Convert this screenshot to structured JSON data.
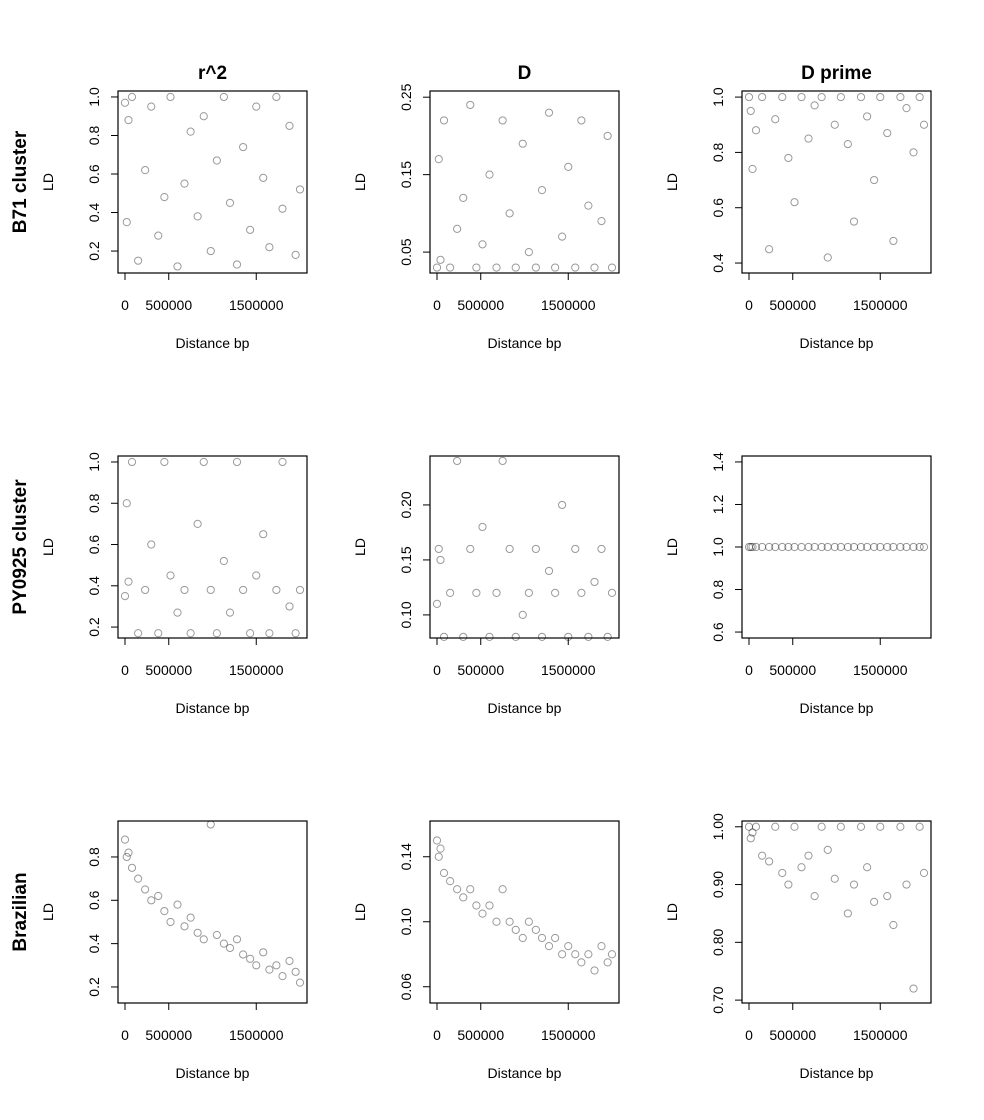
{
  "row_labels": [
    "B71 cluster",
    "PY0925 cluster",
    "Brazilian"
  ],
  "chart_data": [
    {
      "type": "scatter",
      "title": "r^2",
      "xlabel": "Distance bp",
      "ylabel": "LD",
      "color": "#000000",
      "xlim": [
        -80000,
        2080000
      ],
      "xticks": [
        0,
        500000,
        1500000
      ],
      "ylim": [
        0.086,
        1.031
      ],
      "yticks": [
        0.2,
        0.4,
        0.6,
        0.8,
        {
          "value": 1,
          "label": "1.0"
        }
      ],
      "x": [
        0,
        20000,
        80000,
        150000,
        230000,
        300000,
        380000,
        450000,
        520000,
        600000,
        680000,
        750000,
        830000,
        900000,
        980000,
        1050000,
        1130000,
        1200000,
        1280000,
        1350000,
        1430000,
        1500000,
        1580000,
        1650000,
        1730000,
        1800000,
        1880000,
        1950000,
        2000000,
        40000
      ],
      "y": [
        0.97,
        0.35,
        1.0,
        0.15,
        0.62,
        0.95,
        0.28,
        0.48,
        1.0,
        0.12,
        0.55,
        0.82,
        0.38,
        0.9,
        0.2,
        0.67,
        1.0,
        0.45,
        0.13,
        0.74,
        0.31,
        0.95,
        0.58,
        0.22,
        1.0,
        0.42,
        0.85,
        0.18,
        0.52,
        0.88
      ]
    },
    {
      "type": "scatter",
      "title": "D",
      "xlabel": "Distance bp",
      "ylabel": "LD",
      "color": "#000000",
      "xlim": [
        -80000,
        2080000
      ],
      "xticks": [
        0,
        500000,
        1500000
      ],
      "ylim": [
        0.023,
        0.258
      ],
      "yticks": [
        0.05,
        0.15,
        0.25
      ],
      "x": [
        0,
        20000,
        80000,
        150000,
        230000,
        300000,
        380000,
        450000,
        520000,
        600000,
        680000,
        750000,
        830000,
        900000,
        980000,
        1050000,
        1130000,
        1200000,
        1280000,
        1350000,
        1430000,
        1500000,
        1580000,
        1650000,
        1730000,
        1800000,
        1880000,
        1950000,
        2000000,
        40000
      ],
      "y": [
        0.03,
        0.17,
        0.22,
        0.03,
        0.08,
        0.12,
        0.24,
        0.03,
        0.06,
        0.15,
        0.03,
        0.22,
        0.1,
        0.03,
        0.19,
        0.05,
        0.03,
        0.13,
        0.23,
        0.03,
        0.07,
        0.16,
        0.03,
        0.22,
        0.11,
        0.03,
        0.09,
        0.2,
        0.03,
        0.04
      ]
    },
    {
      "type": "scatter",
      "title": "D prime",
      "xlabel": "Distance bp",
      "ylabel": "LD",
      "color": "#000000",
      "xlim": [
        -80000,
        2080000
      ],
      "xticks": [
        0,
        500000,
        1500000
      ],
      "ylim": [
        0.364,
        1.022
      ],
      "yticks": [
        0.4,
        0.6,
        0.8,
        {
          "value": 1,
          "label": "1.0"
        }
      ],
      "x": [
        0,
        20000,
        80000,
        150000,
        230000,
        300000,
        380000,
        450000,
        520000,
        600000,
        680000,
        750000,
        830000,
        900000,
        980000,
        1050000,
        1130000,
        1200000,
        1280000,
        1350000,
        1430000,
        1500000,
        1580000,
        1650000,
        1730000,
        1800000,
        1880000,
        1950000,
        2000000,
        40000
      ],
      "y": [
        1.0,
        0.95,
        0.88,
        1.0,
        0.45,
        0.92,
        1.0,
        0.78,
        0.62,
        1.0,
        0.85,
        0.97,
        1.0,
        0.42,
        0.9,
        1.0,
        0.83,
        0.55,
        1.0,
        0.93,
        0.7,
        1.0,
        0.87,
        0.48,
        1.0,
        0.96,
        0.8,
        1.0,
        0.9,
        0.74
      ]
    },
    {
      "type": "scatter",
      "xlabel": "Distance bp",
      "ylabel": "LD",
      "color": "#000000",
      "xlim": [
        -80000,
        2080000
      ],
      "xticks": [
        0,
        500000,
        1500000
      ],
      "ylim": [
        0.147,
        1.029
      ],
      "yticks": [
        0.2,
        0.4,
        0.6,
        0.8,
        {
          "value": 1,
          "label": "1.0"
        }
      ],
      "x": [
        0,
        20000,
        80000,
        150000,
        230000,
        300000,
        380000,
        450000,
        520000,
        600000,
        680000,
        750000,
        830000,
        900000,
        980000,
        1050000,
        1130000,
        1200000,
        1280000,
        1350000,
        1430000,
        1500000,
        1580000,
        1650000,
        1730000,
        1800000,
        1880000,
        1950000,
        2000000,
        40000
      ],
      "y": [
        0.35,
        0.8,
        1.0,
        0.17,
        0.38,
        0.6,
        0.17,
        1.0,
        0.45,
        0.27,
        0.38,
        0.17,
        0.7,
        1.0,
        0.38,
        0.17,
        0.52,
        0.27,
        1.0,
        0.38,
        0.17,
        0.45,
        0.65,
        0.17,
        0.38,
        1.0,
        0.3,
        0.17,
        0.38,
        0.42
      ]
    },
    {
      "type": "scatter",
      "xlabel": "Distance bp",
      "ylabel": "LD",
      "color": "#000000",
      "xlim": [
        -80000,
        2080000
      ],
      "xticks": [
        0,
        500000,
        1500000
      ],
      "ylim": [
        0.079,
        0.2445
      ],
      "yticks": [
        {
          "value": 0.1,
          "label": "0.10"
        },
        0.15,
        {
          "value": 0.2,
          "label": "0.20"
        }
      ],
      "x": [
        0,
        20000,
        80000,
        150000,
        230000,
        300000,
        380000,
        450000,
        520000,
        600000,
        680000,
        750000,
        830000,
        900000,
        980000,
        1050000,
        1130000,
        1200000,
        1280000,
        1350000,
        1430000,
        1500000,
        1580000,
        1650000,
        1730000,
        1800000,
        1880000,
        1950000,
        2000000,
        40000
      ],
      "y": [
        0.11,
        0.16,
        0.08,
        0.12,
        0.24,
        0.08,
        0.16,
        0.12,
        0.18,
        0.08,
        0.12,
        0.24,
        0.16,
        0.08,
        0.1,
        0.12,
        0.16,
        0.08,
        0.14,
        0.12,
        0.2,
        0.08,
        0.16,
        0.12,
        0.08,
        0.13,
        0.16,
        0.08,
        0.12,
        0.15
      ]
    },
    {
      "type": "scatter",
      "xlabel": "Distance bp",
      "ylabel": "LD",
      "color": "#000000",
      "xlim": [
        -80000,
        2080000
      ],
      "xticks": [
        0,
        500000,
        1500000
      ],
      "ylim": [
        0.572,
        1.428
      ],
      "yticks": [
        0.6,
        0.8,
        {
          "value": 1,
          "label": "1.0"
        },
        1.2,
        1.4
      ],
      "x": [
        0,
        20000,
        80000,
        150000,
        230000,
        300000,
        380000,
        450000,
        520000,
        600000,
        680000,
        750000,
        830000,
        900000,
        980000,
        1050000,
        1130000,
        1200000,
        1280000,
        1350000,
        1430000,
        1500000,
        1580000,
        1650000,
        1730000,
        1800000,
        1880000,
        1950000,
        2000000,
        40000
      ],
      "y": [
        1,
        1,
        1,
        1,
        1,
        1,
        1,
        1,
        1,
        1,
        1,
        1,
        1,
        1,
        1,
        1,
        1,
        1,
        1,
        1,
        1,
        1,
        1,
        1,
        1,
        1,
        1,
        1,
        1,
        1
      ]
    },
    {
      "type": "scatter",
      "xlabel": "Distance bp",
      "ylabel": "LD",
      "color": "#000000",
      "xlim": [
        -80000,
        2080000
      ],
      "xticks": [
        0,
        500000,
        1500000
      ],
      "ylim": [
        0.126,
        0.966
      ],
      "yticks": [
        0.2,
        0.4,
        0.6,
        0.8
      ],
      "x": [
        0,
        20000,
        80000,
        150000,
        230000,
        300000,
        380000,
        450000,
        520000,
        600000,
        680000,
        750000,
        830000,
        900000,
        980000,
        1050000,
        1130000,
        1200000,
        1280000,
        1350000,
        1430000,
        1500000,
        1580000,
        1650000,
        1730000,
        1800000,
        1880000,
        1950000,
        2000000,
        40000
      ],
      "y": [
        0.88,
        0.8,
        0.75,
        0.7,
        0.65,
        0.6,
        0.62,
        0.55,
        0.5,
        0.58,
        0.48,
        0.52,
        0.45,
        0.42,
        0.95,
        0.44,
        0.4,
        0.38,
        0.42,
        0.35,
        0.33,
        0.3,
        0.36,
        0.28,
        0.3,
        0.25,
        0.32,
        0.27,
        0.22,
        0.82
      ]
    },
    {
      "type": "scatter",
      "xlabel": "Distance bp",
      "ylabel": "LD",
      "color": "#000000",
      "xlim": [
        -80000,
        2080000
      ],
      "xticks": [
        0,
        500000,
        1500000
      ],
      "ylim": [
        0.05,
        0.162
      ],
      "yticks": [
        0.06,
        {
          "value": 0.1,
          "label": "0.10"
        },
        0.14
      ],
      "x": [
        0,
        20000,
        80000,
        150000,
        230000,
        300000,
        380000,
        450000,
        520000,
        600000,
        680000,
        750000,
        830000,
        900000,
        980000,
        1050000,
        1130000,
        1200000,
        1280000,
        1350000,
        1430000,
        1500000,
        1580000,
        1650000,
        1730000,
        1800000,
        1880000,
        1950000,
        2000000,
        40000
      ],
      "y": [
        0.15,
        0.14,
        0.13,
        0.125,
        0.12,
        0.115,
        0.12,
        0.11,
        0.105,
        0.11,
        0.1,
        0.12,
        0.1,
        0.095,
        0.09,
        0.1,
        0.095,
        0.09,
        0.085,
        0.09,
        0.08,
        0.085,
        0.08,
        0.075,
        0.08,
        0.07,
        0.085,
        0.075,
        0.08,
        0.145
      ]
    },
    {
      "type": "scatter",
      "xlabel": "Distance bp",
      "ylabel": "LD",
      "color": "#000000",
      "xlim": [
        -80000,
        2080000
      ],
      "xticks": [
        0,
        500000,
        1500000
      ],
      "ylim": [
        0.695,
        1.01
      ],
      "yticks": [
        {
          "value": 0.7,
          "label": "0.70"
        },
        {
          "value": 0.8,
          "label": "0.80"
        },
        {
          "value": 0.9,
          "label": "0.90"
        },
        {
          "value": 1,
          "label": "1.00"
        }
      ],
      "x": [
        0,
        20000,
        80000,
        150000,
        230000,
        300000,
        380000,
        450000,
        520000,
        600000,
        680000,
        750000,
        830000,
        900000,
        980000,
        1050000,
        1130000,
        1200000,
        1280000,
        1350000,
        1430000,
        1500000,
        1580000,
        1650000,
        1730000,
        1800000,
        1880000,
        1950000,
        2000000,
        40000
      ],
      "y": [
        1.0,
        0.98,
        1.0,
        0.95,
        0.94,
        1.0,
        0.92,
        0.9,
        1.0,
        0.93,
        0.95,
        0.88,
        1.0,
        0.96,
        0.91,
        1.0,
        0.85,
        0.9,
        1.0,
        0.93,
        0.87,
        1.0,
        0.88,
        0.83,
        1.0,
        0.9,
        0.72,
        1.0,
        0.92,
        0.99
      ]
    }
  ]
}
